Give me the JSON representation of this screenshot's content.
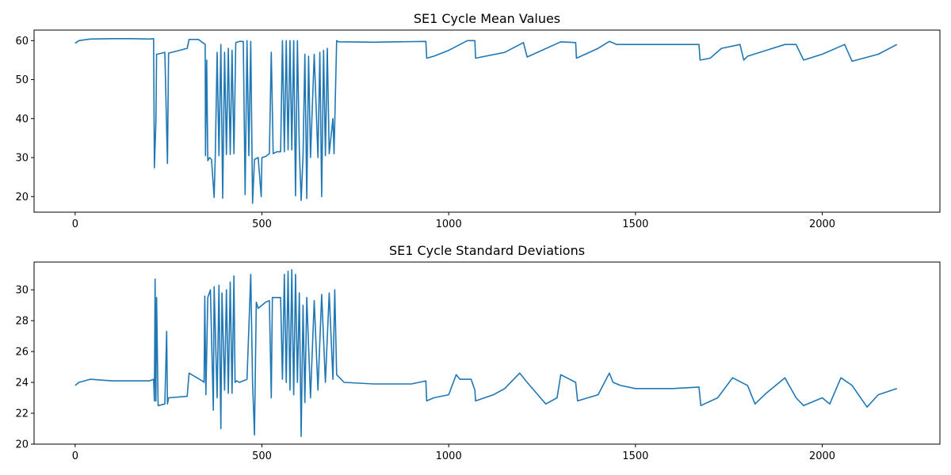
{
  "chart_data": [
    {
      "type": "line",
      "title": "SE1 Cycle Mean Values",
      "xlabel": "",
      "ylabel": "",
      "xlim": [
        -110,
        2315
      ],
      "ylim": [
        16.0,
        62.7
      ],
      "xticks": [
        0,
        500,
        1000,
        1500,
        2000
      ],
      "yticks": [
        20,
        30,
        40,
        50,
        60
      ],
      "grid": false,
      "color": "#1f77b4",
      "series": [
        {
          "x": [
            0,
            10,
            40,
            100,
            150,
            199,
            210,
            212,
            216,
            218,
            220,
            240,
            247,
            250,
            300,
            305,
            330,
            348,
            349,
            352,
            355,
            360,
            365,
            372,
            375,
            380,
            385,
            390,
            395,
            400,
            405,
            410,
            415,
            420,
            425,
            430,
            440,
            450,
            455,
            460,
            465,
            470,
            475,
            480,
            490,
            498,
            500,
            510,
            520,
            525,
            530,
            540,
            550,
            555,
            560,
            565,
            570,
            575,
            580,
            585,
            590,
            595,
            600,
            605,
            610,
            615,
            620,
            625,
            630,
            640,
            650,
            655,
            660,
            665,
            670,
            675,
            680,
            690,
            693,
            700,
            705,
            800,
            939,
            941,
            960,
            1000,
            1050,
            1070,
            1072,
            1150,
            1200,
            1210,
            1300,
            1340,
            1342,
            1400,
            1430,
            1450,
            1500,
            1600,
            1670,
            1673,
            1700,
            1730,
            1780,
            1790,
            1800,
            1850,
            1900,
            1930,
            1950,
            2000,
            2060,
            2080,
            2150,
            2200
          ],
          "values": [
            59.3,
            60.0,
            60.4,
            60.5,
            60.5,
            60.4,
            60.5,
            27.4,
            39.0,
            56.5,
            56.5,
            57.0,
            28.5,
            56.8,
            58.0,
            60.3,
            60.3,
            59.0,
            30.5,
            55.0,
            29.2,
            30.0,
            29.5,
            19.8,
            30.0,
            57.0,
            30.5,
            59.0,
            19.6,
            57.0,
            30.8,
            58.0,
            30.8,
            57.5,
            31.0,
            59.5,
            59.8,
            59.8,
            20.5,
            60.0,
            30.5,
            59.8,
            18.3,
            29.5,
            30.0,
            20.0,
            30.0,
            30.3,
            31.0,
            57.0,
            31.0,
            31.5,
            31.5,
            60.0,
            31.5,
            60.0,
            32.0,
            60.0,
            32.0,
            60.0,
            20.2,
            60.0,
            32.0,
            19.0,
            30.5,
            56.5,
            19.5,
            56.0,
            30.0,
            56.5,
            30.0,
            57.0,
            20.0,
            57.5,
            30.5,
            58.0,
            31.0,
            40.0,
            31.0,
            60.0,
            59.7,
            59.6,
            59.8,
            55.5,
            56.0,
            57.5,
            60.0,
            60.0,
            55.5,
            57.0,
            59.5,
            55.8,
            59.7,
            59.5,
            55.5,
            58.0,
            59.8,
            59.0,
            59.0,
            59.0,
            59.0,
            55.0,
            55.5,
            58.0,
            59.0,
            55.0,
            56.0,
            57.5,
            59.0,
            59.0,
            55.0,
            56.5,
            59.0,
            54.7,
            56.5,
            59.0
          ]
        }
      ]
    },
    {
      "type": "line",
      "title": "SE1 Cycle Standard Deviations",
      "xlabel": "",
      "ylabel": "",
      "xlim": [
        -110,
        2315
      ],
      "ylim": [
        20.0,
        31.8
      ],
      "xticks": [
        0,
        500,
        1000,
        1500,
        2000
      ],
      "yticks": [
        20,
        22,
        24,
        26,
        28,
        30
      ],
      "grid": false,
      "color": "#1f77b4",
      "series": [
        {
          "x": [
            0,
            10,
            40,
            100,
            150,
            199,
            210,
            212,
            214,
            216,
            218,
            222,
            240,
            245,
            247,
            250,
            300,
            305,
            340,
            345,
            347,
            350,
            355,
            362,
            370,
            372,
            380,
            385,
            390,
            393,
            400,
            405,
            410,
            415,
            420,
            425,
            428,
            432,
            440,
            460,
            470,
            475,
            480,
            485,
            490,
            500,
            510,
            520,
            525,
            528,
            535,
            550,
            555,
            560,
            565,
            570,
            575,
            580,
            585,
            590,
            595,
            600,
            605,
            610,
            615,
            620,
            630,
            640,
            650,
            660,
            670,
            680,
            690,
            695,
            700,
            720,
            800,
            900,
            939,
            941,
            960,
            1000,
            1020,
            1030,
            1060,
            1070,
            1072,
            1120,
            1150,
            1190,
            1210,
            1260,
            1290,
            1300,
            1340,
            1345,
            1400,
            1430,
            1440,
            1460,
            1500,
            1600,
            1670,
            1675,
            1720,
            1760,
            1800,
            1820,
            1850,
            1900,
            1930,
            1950,
            2000,
            2020,
            2050,
            2080,
            2120,
            2150,
            2200
          ],
          "values": [
            23.8,
            24.0,
            24.2,
            24.1,
            24.1,
            24.1,
            24.2,
            22.8,
            30.7,
            22.8,
            29.5,
            22.5,
            22.6,
            27.3,
            22.6,
            23.0,
            23.1,
            24.6,
            24.1,
            24.0,
            29.6,
            23.2,
            29.5,
            30.0,
            22.2,
            30.2,
            23.0,
            30.3,
            21.0,
            29.8,
            23.5,
            30.0,
            23.3,
            30.5,
            23.3,
            30.9,
            24.0,
            24.1,
            24.0,
            24.2,
            31.0,
            24.0,
            20.6,
            29.2,
            28.8,
            29.0,
            29.2,
            29.3,
            23.0,
            29.5,
            29.5,
            29.5,
            24.2,
            31.0,
            24.0,
            31.2,
            23.5,
            31.3,
            23.2,
            31.0,
            24.0,
            29.8,
            20.5,
            29.0,
            22.7,
            29.5,
            23.0,
            29.3,
            23.5,
            29.7,
            24.0,
            29.8,
            24.2,
            30.0,
            24.5,
            24.0,
            23.9,
            23.9,
            24.1,
            22.8,
            23.0,
            23.2,
            24.5,
            24.2,
            24.2,
            23.5,
            22.8,
            23.2,
            23.6,
            24.6,
            24.0,
            22.6,
            23.0,
            24.5,
            24.0,
            22.8,
            23.2,
            24.6,
            24.0,
            23.8,
            23.6,
            23.6,
            23.7,
            22.5,
            23.0,
            24.3,
            23.8,
            22.6,
            23.3,
            24.3,
            23.0,
            22.5,
            23.0,
            22.6,
            24.3,
            23.8,
            22.4,
            23.2,
            23.6
          ]
        }
      ]
    }
  ]
}
